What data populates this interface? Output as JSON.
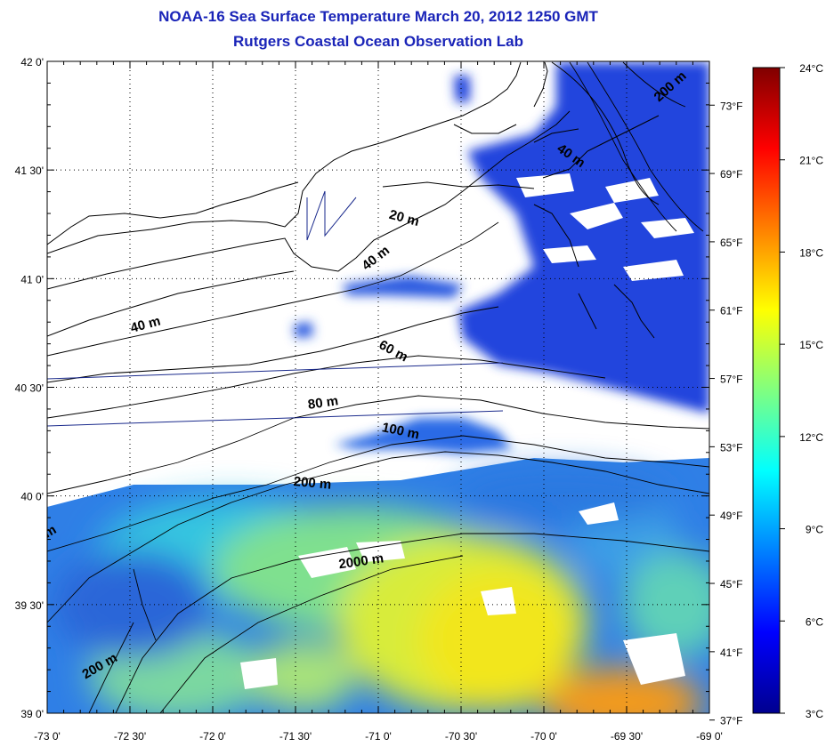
{
  "title_line1": "NOAA-16 Sea Surface Temperature March 20, 2012 1250 GMT",
  "title_line2": "Rutgers Coastal Ocean Observation Lab",
  "colors": {
    "title": "#1a24b8",
    "cloud": "#ffffff",
    "land_line": "#000000",
    "contour_line": "#000000",
    "track_line": "#1a2a8c"
  },
  "map": {
    "lon_range": [
      -73.0,
      -69.0
    ],
    "lat_range": [
      39.0,
      42.0
    ],
    "lat_ticks": [
      {
        "value": 42.0,
        "label": "42 0'"
      },
      {
        "value": 41.5,
        "label": "41 30'"
      },
      {
        "value": 41.0,
        "label": "41 0'"
      },
      {
        "value": 40.5,
        "label": "40 30'"
      },
      {
        "value": 40.0,
        "label": "40 0'"
      },
      {
        "value": 39.5,
        "label": "39 30'"
      },
      {
        "value": 39.0,
        "label": "39 0'"
      }
    ],
    "lon_ticks": [
      {
        "value": -73.0,
        "label": "-73 0'"
      },
      {
        "value": -72.5,
        "label": "-72 30'"
      },
      {
        "value": -72.0,
        "label": "-72 0'"
      },
      {
        "value": -71.5,
        "label": "-71 30'"
      },
      {
        "value": -71.0,
        "label": "-71 0'"
      },
      {
        "value": -70.5,
        "label": "-70 30'"
      },
      {
        "value": -70.0,
        "label": "-70 0'"
      },
      {
        "value": -69.5,
        "label": "-69 30'"
      },
      {
        "value": -69.0,
        "label": "-69 0'"
      }
    ],
    "fahrenheit_ticks": [
      {
        "value": 73,
        "label": "73°F"
      },
      {
        "value": 69,
        "label": "69°F"
      },
      {
        "value": 65,
        "label": "65°F"
      },
      {
        "value": 61,
        "label": "61°F"
      },
      {
        "value": 57,
        "label": "57°F"
      },
      {
        "value": 53,
        "label": "53°F"
      },
      {
        "value": 49,
        "label": "49°F"
      },
      {
        "value": 45,
        "label": "45°F"
      },
      {
        "value": 41,
        "label": "41°F"
      },
      {
        "value": 37,
        "label": "37°F"
      }
    ],
    "depth_labels": [
      {
        "text": "200 m",
        "lon": -69.22,
        "lat": 41.87,
        "rot": -42
      },
      {
        "text": "40 m",
        "lon": -69.85,
        "lat": 41.55,
        "rot": 35
      },
      {
        "text": "20 m",
        "lon": -70.85,
        "lat": 41.26,
        "rot": 15
      },
      {
        "text": "40 m",
        "lon": -71.0,
        "lat": 41.08,
        "rot": -38
      },
      {
        "text": "40 m",
        "lon": -72.4,
        "lat": 40.77,
        "rot": -15
      },
      {
        "text": "60 m",
        "lon": -70.92,
        "lat": 40.65,
        "rot": 28
      },
      {
        "text": "80 m",
        "lon": -71.33,
        "lat": 40.41,
        "rot": -8
      },
      {
        "text": "100 m",
        "lon": -70.87,
        "lat": 40.28,
        "rot": 12
      },
      {
        "text": "200 m",
        "lon": -71.4,
        "lat": 40.04,
        "rot": 5
      },
      {
        "text": "2000 m",
        "lon": -71.1,
        "lat": 39.68,
        "rot": -8
      },
      {
        "text": "200 m",
        "lon": -72.67,
        "lat": 39.2,
        "rot": -30
      },
      {
        "text": "m",
        "lon": -72.97,
        "lat": 39.82,
        "rot": -30
      }
    ]
  },
  "colorbar": {
    "min_c": 3,
    "max_c": 24,
    "gradient": [
      "#00008f",
      "#0000ff",
      "#0080ff",
      "#00ffff",
      "#80ff80",
      "#ffff00",
      "#ff8000",
      "#ff0000",
      "#800000"
    ],
    "celsius_ticks": [
      {
        "value": 24,
        "label": "24°C"
      },
      {
        "value": 21,
        "label": "21°C"
      },
      {
        "value": 18,
        "label": "18°C"
      },
      {
        "value": 15,
        "label": "15°C"
      },
      {
        "value": 12,
        "label": "12°C"
      },
      {
        "value": 9,
        "label": "9°C"
      },
      {
        "value": 6,
        "label": "6°C"
      },
      {
        "value": 3,
        "label": "3°C"
      }
    ]
  }
}
